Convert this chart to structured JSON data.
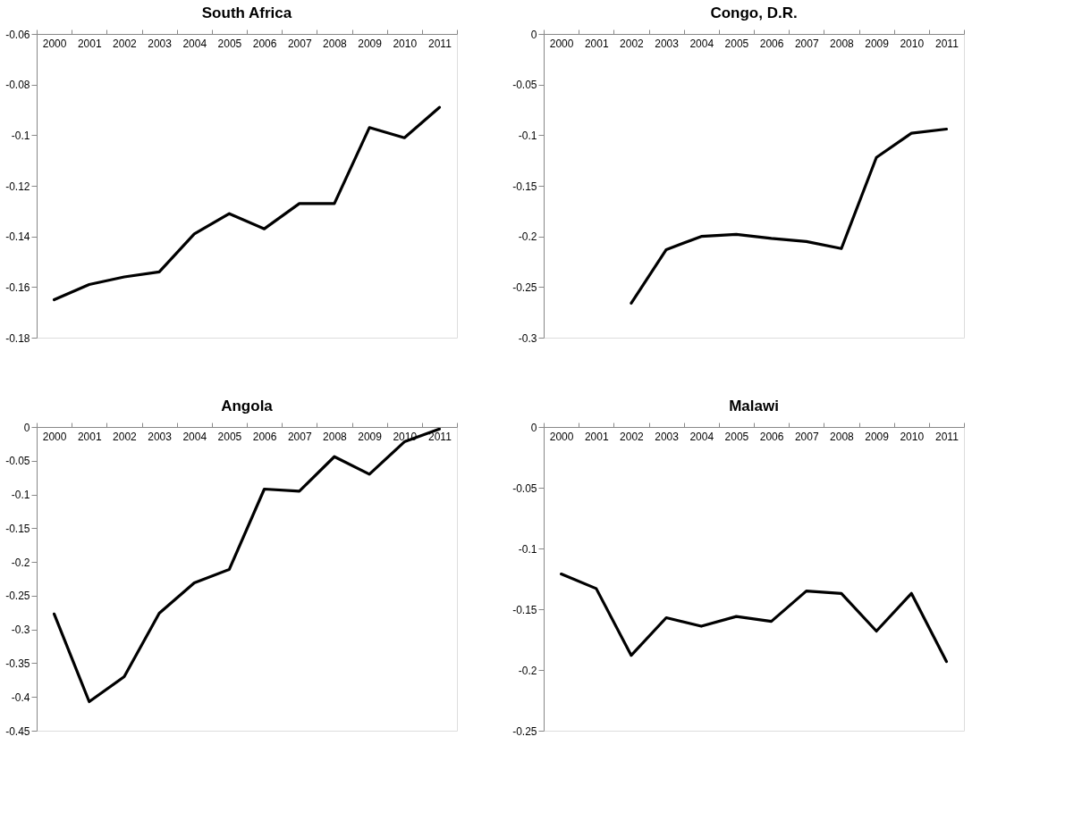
{
  "chart_data": [
    {
      "type": "line",
      "title": "South Africa",
      "categories": [
        "2000",
        "2001",
        "2002",
        "2003",
        "2004",
        "2005",
        "2006",
        "2007",
        "2008",
        "2009",
        "2010",
        "2011"
      ],
      "ylim": [
        -0.18,
        -0.06
      ],
      "yticks": [
        -0.06,
        -0.08,
        -0.1,
        -0.12,
        -0.14,
        -0.16,
        -0.18
      ],
      "grid": false,
      "series": [
        {
          "color": "#000000",
          "values": [
            -0.165,
            -0.159,
            -0.156,
            -0.154,
            -0.139,
            -0.131,
            -0.137,
            -0.127,
            -0.127,
            -0.097,
            -0.101,
            -0.089
          ]
        }
      ]
    },
    {
      "type": "line",
      "title": "Congo, D.R.",
      "categories": [
        "2000",
        "2001",
        "2002",
        "2003",
        "2004",
        "2005",
        "2006",
        "2007",
        "2008",
        "2009",
        "2010",
        "2011"
      ],
      "ylim": [
        -0.3,
        0
      ],
      "yticks": [
        0,
        -0.05,
        -0.1,
        -0.15,
        -0.2,
        -0.25,
        -0.3
      ],
      "grid": false,
      "series": [
        {
          "color": "#000000",
          "values": [
            null,
            null,
            -0.266,
            -0.213,
            -0.2,
            -0.198,
            -0.202,
            -0.205,
            -0.212,
            -0.122,
            -0.098,
            -0.094
          ]
        }
      ]
    },
    {
      "type": "line",
      "title": "Angola",
      "categories": [
        "2000",
        "2001",
        "2002",
        "2003",
        "2004",
        "2005",
        "2006",
        "2007",
        "2008",
        "2009",
        "2010",
        "2011"
      ],
      "ylim": [
        -0.45,
        0
      ],
      "yticks": [
        0,
        -0.05,
        -0.1,
        -0.15,
        -0.2,
        -0.25,
        -0.3,
        -0.35,
        -0.4,
        -0.45
      ],
      "grid": false,
      "series": [
        {
          "color": "#000000",
          "values": [
            -0.277,
            -0.407,
            -0.37,
            -0.276,
            -0.231,
            -0.211,
            -0.092,
            -0.095,
            -0.044,
            -0.07,
            -0.022,
            -0.003
          ]
        }
      ]
    },
    {
      "type": "line",
      "title": "Malawi",
      "categories": [
        "2000",
        "2001",
        "2002",
        "2003",
        "2004",
        "2005",
        "2006",
        "2007",
        "2008",
        "2009",
        "2010",
        "2011"
      ],
      "ylim": [
        -0.25,
        0
      ],
      "yticks": [
        0,
        -0.05,
        -0.1,
        -0.15,
        -0.2,
        -0.25
      ],
      "grid": false,
      "series": [
        {
          "color": "#000000",
          "values": [
            -0.121,
            -0.133,
            -0.188,
            -0.157,
            -0.164,
            -0.156,
            -0.16,
            -0.135,
            -0.137,
            -0.168,
            -0.137,
            -0.193
          ]
        }
      ]
    }
  ]
}
